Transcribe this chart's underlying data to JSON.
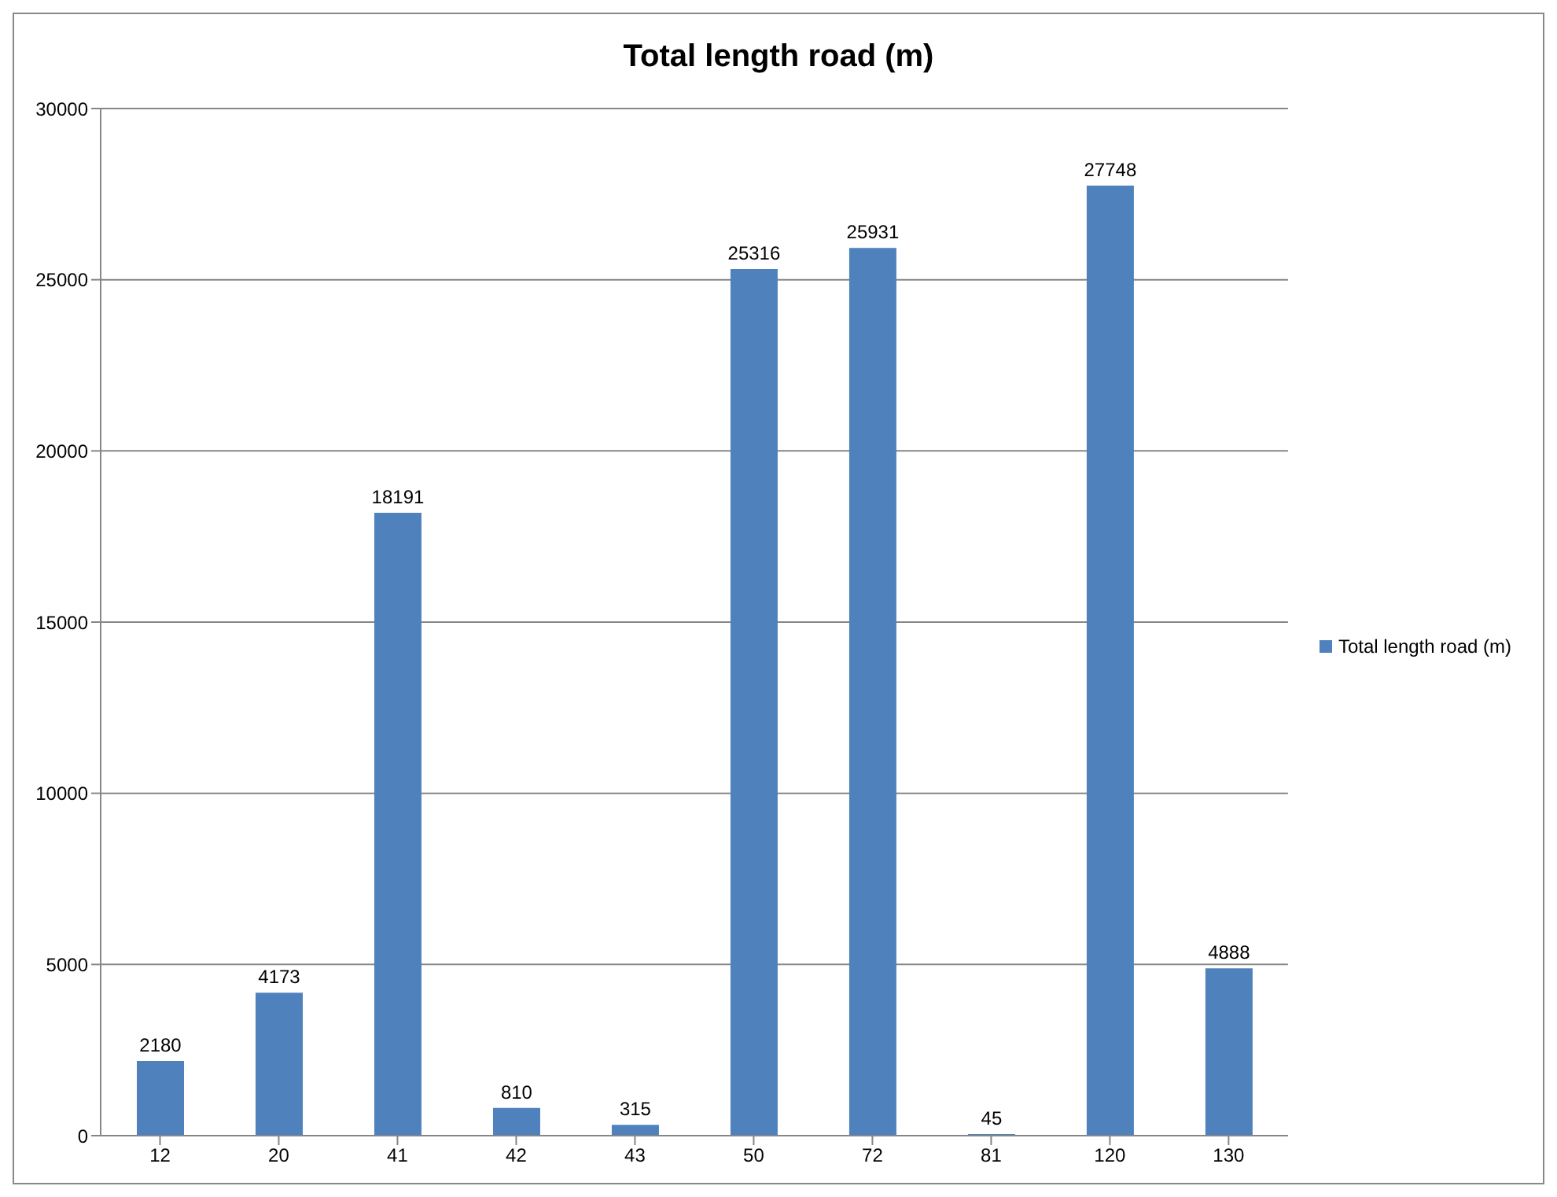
{
  "chart_data": {
    "type": "bar",
    "title": "Total length road (m)",
    "categories": [
      "12",
      "20",
      "41",
      "42",
      "43",
      "50",
      "72",
      "81",
      "120",
      "130"
    ],
    "series": [
      {
        "name": "Total length road (m)",
        "color": "#4f81bd",
        "values": [
          2180,
          4173,
          18191,
          810,
          315,
          25316,
          25931,
          45,
          27748,
          4888
        ]
      }
    ],
    "ylim": [
      0,
      30000
    ],
    "yticks": [
      0,
      5000,
      10000,
      15000,
      20000,
      25000,
      30000
    ],
    "grid": "y",
    "legend": "right",
    "data_labels": true
  }
}
